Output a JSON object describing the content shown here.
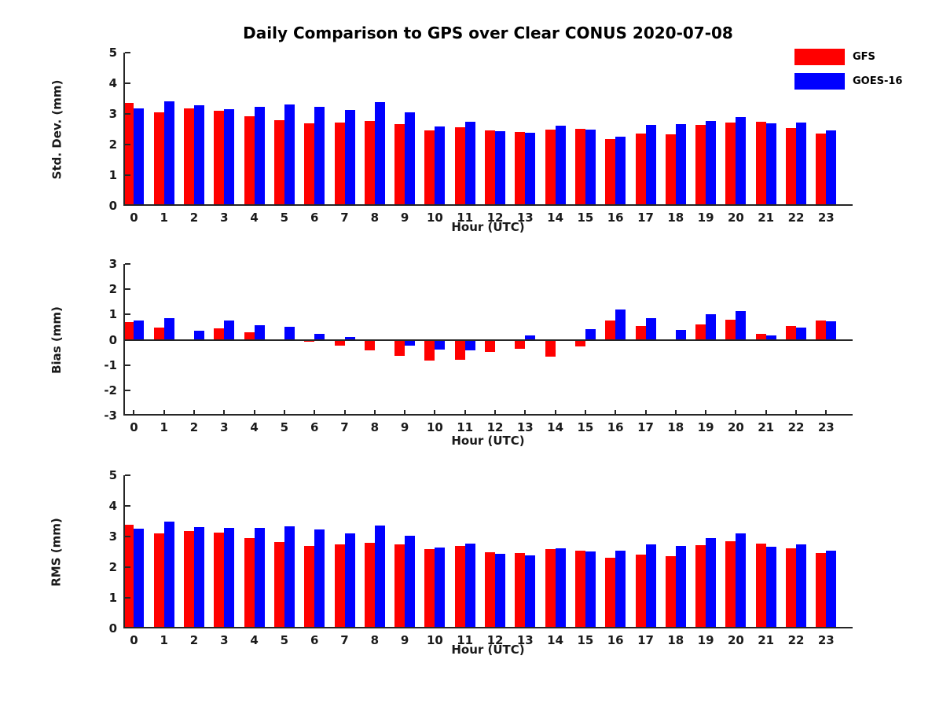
{
  "title": "Daily Comparison to GPS over Clear CONUS 2020-07-08",
  "legend": {
    "position": "top-right",
    "items": [
      {
        "label": "GFS",
        "color": "#ff0000"
      },
      {
        "label": "GOES-16",
        "color": "#0000ff"
      }
    ]
  },
  "colors": {
    "gfs": "#ff0000",
    "goes16": "#0000ff",
    "axis": "#262626",
    "text": "#1a1a1a"
  },
  "chart_data": [
    {
      "type": "bar",
      "name": "std-dev",
      "ylabel": "Std. Dev. (mm)",
      "xlabel": "Hour (UTC)",
      "categories": [
        "0",
        "1",
        "2",
        "3",
        "4",
        "5",
        "6",
        "7",
        "8",
        "9",
        "10",
        "11",
        "12",
        "13",
        "14",
        "15",
        "16",
        "17",
        "18",
        "19",
        "20",
        "21",
        "22",
        "23"
      ],
      "ylim": [
        0,
        5
      ],
      "yticks": [
        0,
        1,
        2,
        3,
        4,
        5
      ],
      "grid": false,
      "bottom_ticks": false,
      "series": [
        {
          "name": "GFS",
          "color": "#ff0000",
          "values": [
            3.35,
            3.05,
            3.18,
            3.1,
            2.93,
            2.8,
            2.68,
            2.73,
            2.76,
            2.67,
            2.45,
            2.57,
            2.46,
            2.42,
            2.48,
            2.52,
            2.18,
            2.36,
            2.33,
            2.64,
            2.72,
            2.74,
            2.53,
            2.35
          ]
        },
        {
          "name": "GOES-16",
          "color": "#0000ff",
          "values": [
            3.17,
            3.42,
            3.27,
            3.15,
            3.22,
            3.3,
            3.22,
            3.12,
            3.38,
            3.05,
            2.6,
            2.75,
            2.43,
            2.38,
            2.62,
            2.48,
            2.26,
            2.64,
            2.66,
            2.78,
            2.89,
            2.68,
            2.71,
            2.45
          ]
        }
      ]
    },
    {
      "type": "bar",
      "name": "bias",
      "ylabel": "Bias (mm)",
      "xlabel": "Hour (UTC)",
      "categories": [
        "0",
        "1",
        "2",
        "3",
        "4",
        "5",
        "6",
        "7",
        "8",
        "9",
        "10",
        "11",
        "12",
        "13",
        "14",
        "15",
        "16",
        "17",
        "18",
        "19",
        "20",
        "21",
        "22",
        "23"
      ],
      "ylim": [
        -3,
        3
      ],
      "yticks": [
        -3,
        -2,
        -1,
        0,
        1,
        2,
        3
      ],
      "grid": false,
      "bottom_ticks": true,
      "series": [
        {
          "name": "GFS",
          "color": "#ff0000",
          "values": [
            0.7,
            0.48,
            -0.02,
            0.46,
            0.3,
            0.03,
            -0.08,
            -0.24,
            -0.43,
            -0.65,
            -0.81,
            -0.79,
            -0.48,
            -0.36,
            -0.68,
            -0.27,
            0.75,
            0.53,
            0.0,
            0.62,
            0.8,
            0.24,
            0.55,
            0.75
          ]
        },
        {
          "name": "GOES-16",
          "color": "#0000ff",
          "values": [
            0.77,
            0.86,
            0.35,
            0.76,
            0.56,
            0.52,
            0.24,
            0.11,
            -0.04,
            -0.24,
            -0.4,
            -0.43,
            -0.03,
            0.18,
            0.0,
            0.41,
            1.19,
            0.85,
            0.38,
            1.0,
            1.13,
            0.17,
            0.49,
            0.72
          ]
        }
      ]
    },
    {
      "type": "bar",
      "name": "rms",
      "ylabel": "RMS (mm)",
      "xlabel": "Hour (UTC)",
      "categories": [
        "0",
        "1",
        "2",
        "3",
        "4",
        "5",
        "6",
        "7",
        "8",
        "9",
        "10",
        "11",
        "12",
        "13",
        "14",
        "15",
        "16",
        "17",
        "18",
        "19",
        "20",
        "21",
        "22",
        "23"
      ],
      "ylim": [
        0,
        5
      ],
      "yticks": [
        0,
        1,
        2,
        3,
        4,
        5
      ],
      "grid": false,
      "bottom_ticks": false,
      "series": [
        {
          "name": "GFS",
          "color": "#ff0000",
          "values": [
            3.39,
            3.1,
            3.18,
            3.14,
            2.94,
            2.81,
            2.68,
            2.74,
            2.79,
            2.75,
            2.6,
            2.69,
            2.5,
            2.47,
            2.58,
            2.54,
            2.32,
            2.42,
            2.35,
            2.73,
            2.85,
            2.77,
            2.61,
            2.47
          ]
        },
        {
          "name": "GOES-16",
          "color": "#0000ff",
          "values": [
            3.26,
            3.5,
            3.3,
            3.27,
            3.27,
            3.34,
            3.24,
            3.1,
            3.36,
            3.03,
            2.64,
            2.78,
            2.44,
            2.38,
            2.62,
            2.52,
            2.55,
            2.74,
            2.69,
            2.95,
            3.09,
            2.67,
            2.74,
            2.54
          ]
        }
      ]
    }
  ]
}
